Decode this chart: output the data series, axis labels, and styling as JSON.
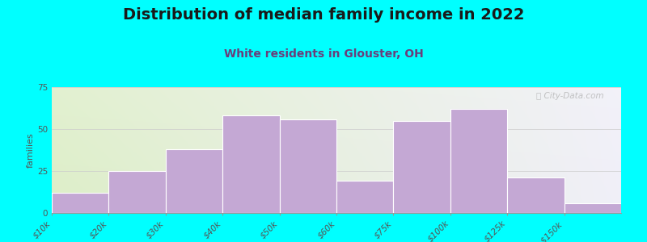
{
  "title": "Distribution of median family income in 2022",
  "subtitle": "White residents in Glouster, OH",
  "ylabel": "families",
  "categories": [
    "$10k",
    "$20k",
    "$30k",
    "$40k",
    "$50k",
    "$60k",
    "$75k",
    "$100k",
    "$125k",
    ">$150k"
  ],
  "values": [
    12,
    25,
    38,
    58,
    56,
    19,
    55,
    62,
    21,
    6
  ],
  "ylim": [
    0,
    75
  ],
  "yticks": [
    0,
    25,
    50,
    75
  ],
  "bar_color": "#c4a8d4",
  "bar_edge_color": "#ffffff",
  "background_color": "#00ffff",
  "title_color": "#1a1a1a",
  "subtitle_color": "#6a3d7a",
  "title_fontsize": 14,
  "subtitle_fontsize": 10,
  "ylabel_fontsize": 8,
  "tick_fontsize": 7.5,
  "watermark_text": "ⓘ City-Data.com"
}
